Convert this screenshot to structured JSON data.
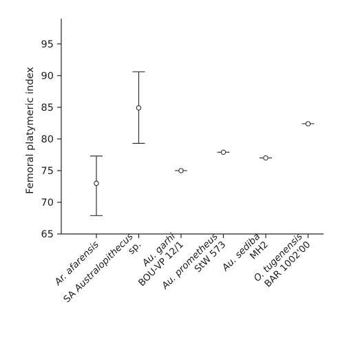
{
  "chart_data": {
    "type": "scatter",
    "title": "",
    "xlabel": "",
    "ylabel": "Femoral platymeric index",
    "ylim": [
      65,
      99
    ],
    "yticks": [
      65,
      70,
      75,
      80,
      85,
      90,
      95
    ],
    "grid": false,
    "categories": [
      {
        "lines": [
          {
            "text": "Ar. afarensis",
            "italic": true
          }
        ]
      },
      {
        "lines": [
          {
            "text": "SA Australopithecus",
            "italic": false,
            "italic_part": "Australopithecus",
            "prefix": "SA "
          },
          {
            "text": "sp.",
            "italic": false
          }
        ]
      },
      {
        "lines": [
          {
            "text": "Au. garhi",
            "italic": true
          },
          {
            "text": "BOU-VP 12/1",
            "italic": false
          }
        ]
      },
      {
        "lines": [
          {
            "text": "Au. prometheus",
            "italic": true
          },
          {
            "text": "StW 573",
            "italic": false
          }
        ]
      },
      {
        "lines": [
          {
            "text": "Au. sediba",
            "italic": true
          },
          {
            "text": "MH2",
            "italic": false
          }
        ]
      },
      {
        "lines": [
          {
            "text": "O. tugenensis",
            "italic": true
          },
          {
            "text": "BAR 1002'00",
            "italic": false
          }
        ]
      }
    ],
    "values": [
      73.0,
      84.9,
      75.0,
      77.9,
      77.0,
      82.4
    ],
    "error_low": [
      67.9,
      79.3,
      75.0,
      77.9,
      77.0,
      82.4
    ],
    "error_high": [
      77.3,
      90.6,
      75.0,
      77.9,
      77.0,
      82.4
    ],
    "marker": "open-circle",
    "color": "#333333"
  }
}
